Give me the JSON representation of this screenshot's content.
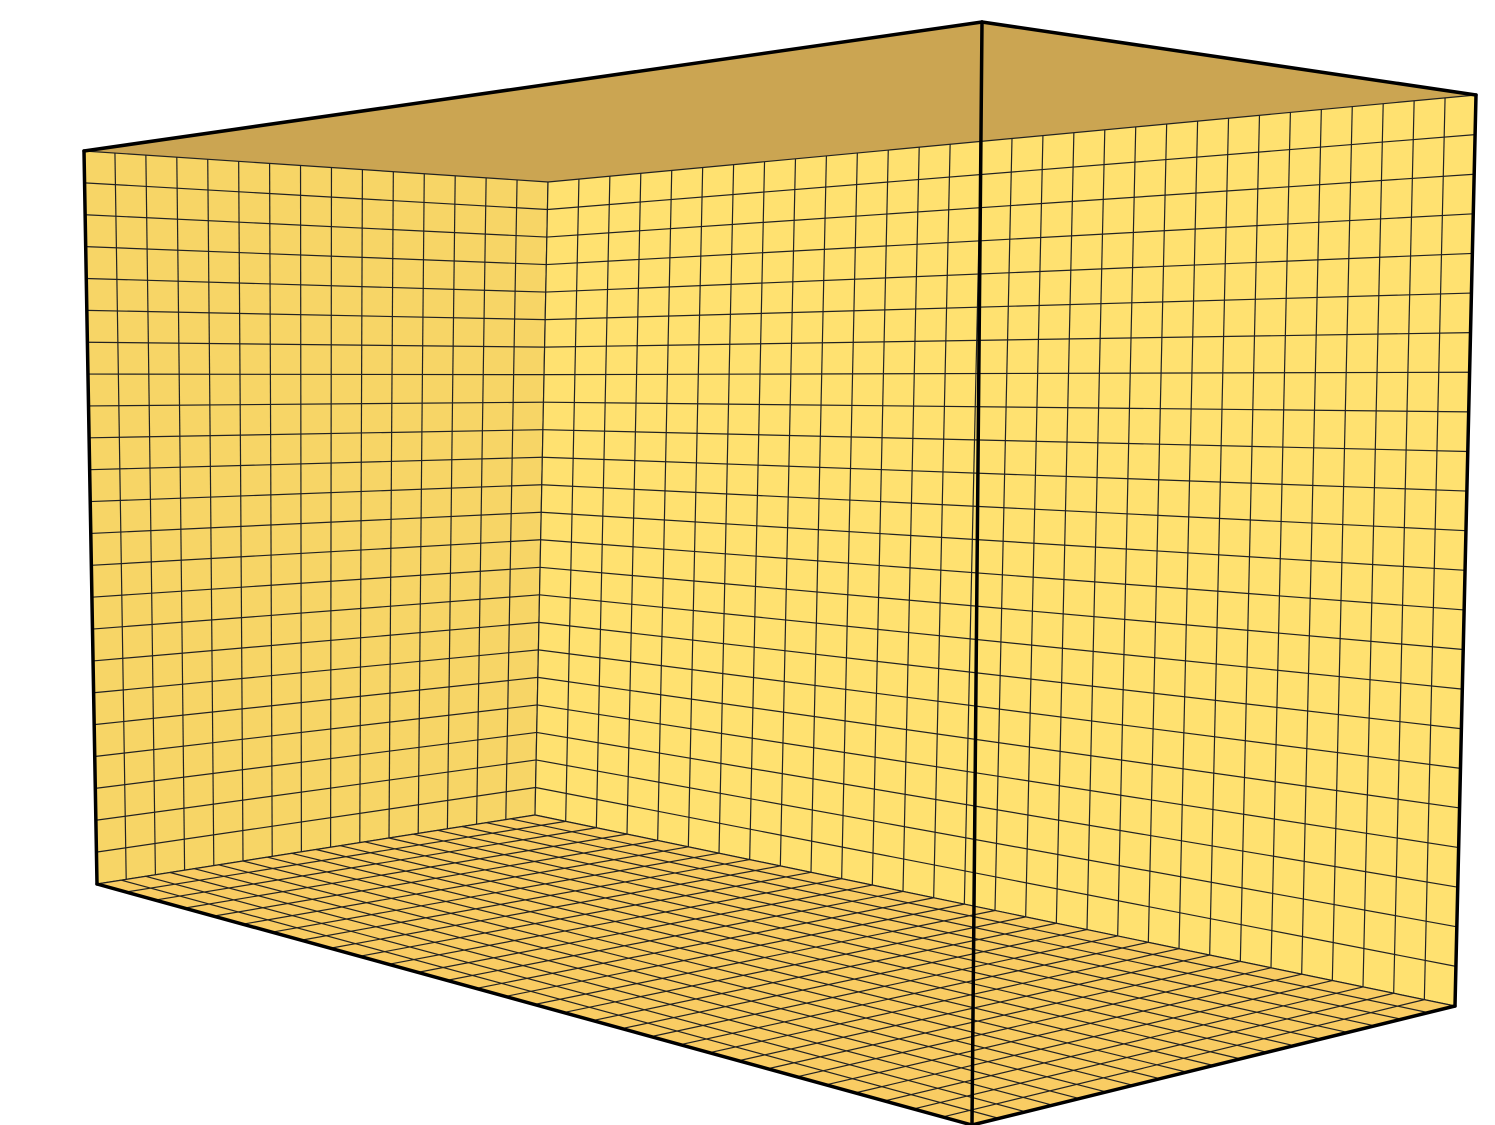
{
  "scene": {
    "description_label": "",
    "grid": {
      "left_wall_columns": 15,
      "back_wall_columns": 30,
      "wall_rows": 23,
      "floor_rows": 18
    },
    "colors": {
      "background": "#ffffff",
      "wall_fill": "#FFE170",
      "wall_shade": "#F7D566",
      "floor_fill": "#F9CC63",
      "ceiling_fill": "#CBA552",
      "grid_line": "#222222",
      "edge_line": "#000000"
    }
  }
}
